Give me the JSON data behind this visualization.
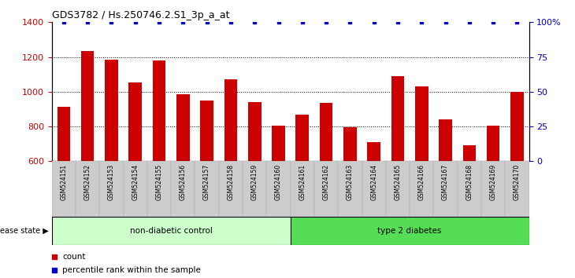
{
  "title": "GDS3782 / Hs.250746.2.S1_3p_a_at",
  "samples": [
    "GSM524151",
    "GSM524152",
    "GSM524153",
    "GSM524154",
    "GSM524155",
    "GSM524156",
    "GSM524157",
    "GSM524158",
    "GSM524159",
    "GSM524160",
    "GSM524161",
    "GSM524162",
    "GSM524163",
    "GSM524164",
    "GSM524165",
    "GSM524166",
    "GSM524167",
    "GSM524168",
    "GSM524169",
    "GSM524170"
  ],
  "counts": [
    915,
    1235,
    1185,
    1055,
    1180,
    985,
    950,
    1070,
    940,
    805,
    870,
    935,
    795,
    710,
    1090,
    1030,
    840,
    690,
    805,
    1000
  ],
  "ylim_left": [
    600,
    1400
  ],
  "ylim_right": [
    0,
    100
  ],
  "yticks_left": [
    600,
    800,
    1000,
    1200,
    1400
  ],
  "yticks_right": [
    0,
    25,
    50,
    75,
    100
  ],
  "bar_color": "#cc0000",
  "dot_color": "#0000cc",
  "grid_values": [
    800,
    1000,
    1200
  ],
  "non_diabetic_count": 10,
  "type2_count": 10,
  "label_non_diabetic": "non-diabetic control",
  "label_type2": "type 2 diabetes",
  "legend_count_label": "count",
  "legend_percentile_label": "percentile rank within the sample",
  "disease_state_label": "disease state",
  "bg_non_diabetic": "#ccffcc",
  "bg_type2": "#55dd55",
  "bg_ticks": "#cccccc"
}
